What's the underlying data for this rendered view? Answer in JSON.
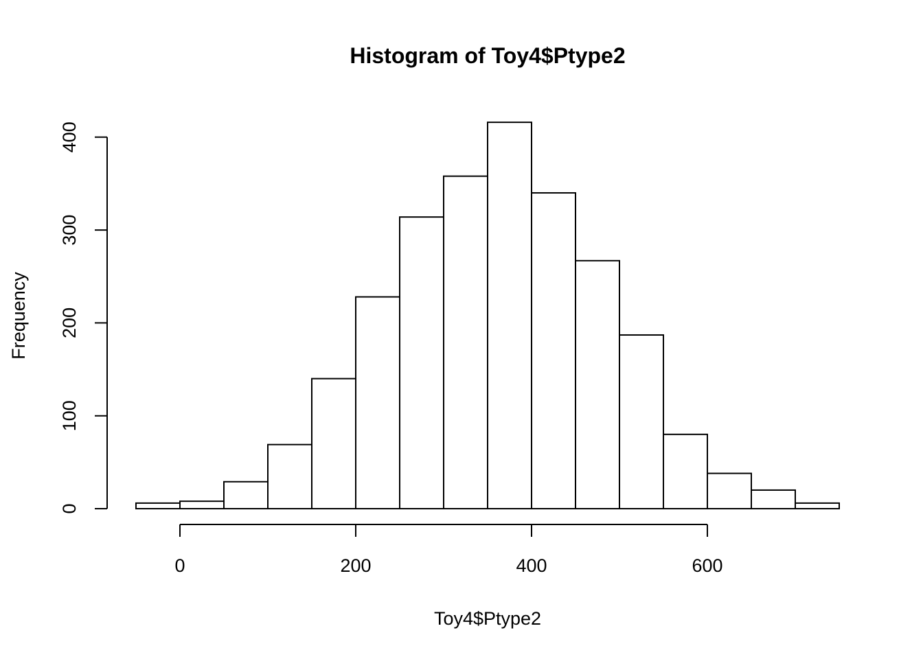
{
  "chart_data": {
    "type": "bar",
    "title": "Histogram of Toy4$Ptype2",
    "xlabel": "Toy4$Ptype2",
    "ylabel": "Frequency",
    "bins": [
      {
        "from": -50,
        "to": 0,
        "count": 6
      },
      {
        "from": 0,
        "to": 50,
        "count": 8
      },
      {
        "from": 50,
        "to": 100,
        "count": 29
      },
      {
        "from": 100,
        "to": 150,
        "count": 69
      },
      {
        "from": 150,
        "to": 200,
        "count": 140
      },
      {
        "from": 200,
        "to": 250,
        "count": 228
      },
      {
        "from": 250,
        "to": 300,
        "count": 314
      },
      {
        "from": 300,
        "to": 350,
        "count": 358
      },
      {
        "from": 350,
        "to": 400,
        "count": 416
      },
      {
        "from": 400,
        "to": 450,
        "count": 340
      },
      {
        "from": 450,
        "to": 500,
        "count": 267
      },
      {
        "from": 500,
        "to": 550,
        "count": 187
      },
      {
        "from": 550,
        "to": 600,
        "count": 80
      },
      {
        "from": 600,
        "to": 650,
        "count": 38
      },
      {
        "from": 650,
        "to": 700,
        "count": 20
      },
      {
        "from": 700,
        "to": 750,
        "count": 6
      }
    ],
    "xticks": [
      0,
      200,
      400,
      600
    ],
    "yticks": [
      0,
      100,
      200,
      300,
      400
    ],
    "xlim": [
      -50,
      750
    ],
    "ylim": [
      0,
      416
    ],
    "grid": false,
    "colors": {
      "bar_fill": "#ffffff",
      "bar_stroke": "#000000"
    }
  }
}
